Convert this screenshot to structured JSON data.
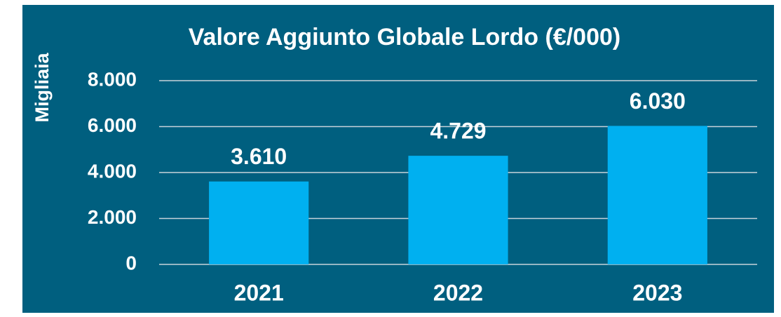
{
  "chart_data": {
    "type": "bar",
    "title": "Valore Aggiunto Globale Lordo (€/000)",
    "y_label": "Migliaia",
    "categories": [
      "2021",
      "2022",
      "2023"
    ],
    "values": [
      3610,
      4729,
      6030
    ],
    "value_labels": [
      "3.610",
      "4.729",
      "6.030"
    ],
    "color": "#00b0f0",
    "ylim": [
      0,
      8000
    ],
    "yticks": [
      0,
      {
        "value": 2000,
        "label": "2.000"
      },
      {
        "value": 4000,
        "label": "4.000"
      },
      {
        "value": 6000,
        "label": "6.000"
      },
      {
        "value": 8000,
        "label": "8.000"
      }
    ],
    "grid": true
  }
}
